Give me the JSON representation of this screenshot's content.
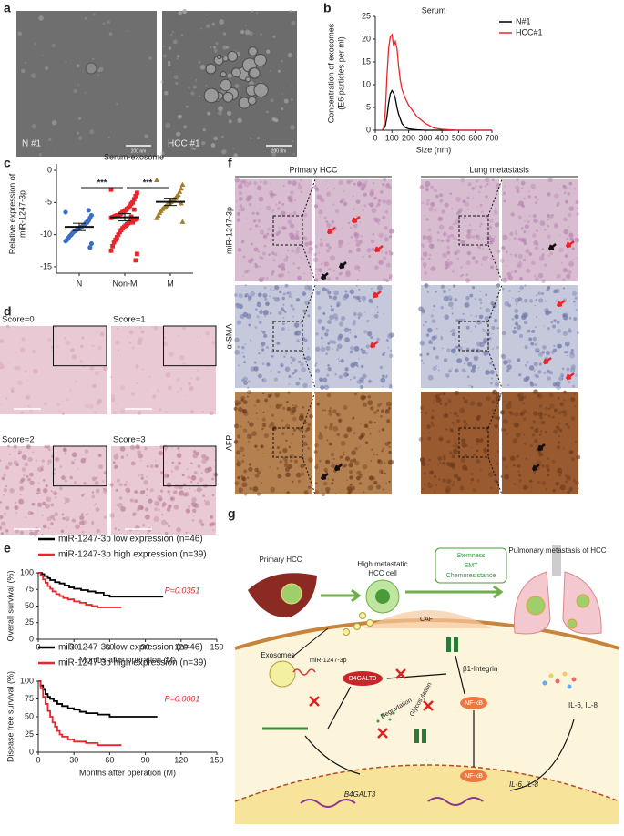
{
  "panel_labels": [
    "a",
    "b",
    "c",
    "d",
    "e",
    "f",
    "g"
  ],
  "panel_a": {
    "images": [
      {
        "label": "N #1",
        "scale": "200 nm"
      },
      {
        "label": "HCC #1",
        "scale": "200 nm"
      }
    ]
  },
  "panel_d": {
    "scores": [
      "Score=0",
      "Score=1",
      "Score=2",
      "Score=3"
    ]
  },
  "panel_f": {
    "columns": [
      "Primary HCC",
      "Lung metastasis"
    ],
    "rows": [
      "miR-1247-3p",
      "α-SMA",
      "AFP"
    ]
  },
  "panel_g": {
    "primary": "Primary HCC",
    "hcc_cell": [
      "High metastatic",
      "HCC cell"
    ],
    "effects": [
      "Stemness",
      "EMT",
      "Chemoresistance"
    ],
    "lung": "Pulmonary metastasis of HCC",
    "caf": "CAF",
    "exosomes": "Exosomes",
    "mirna": "miR-1247-3p",
    "b4galt3": "B4GALT3",
    "integrin": "β1-Integrin",
    "glycosylation": "Glycosylation",
    "nfkb": "NF-κB",
    "degradation": "Degradation",
    "il_secreted": "IL-6, IL-8",
    "b4galt3_gene": "B4GALT3",
    "nfkb_nucleus": "NF-κB",
    "il_genes": "IL-6, IL-8"
  },
  "chart_data": [
    {
      "type": "line",
      "title": "Serum",
      "xlabel": "Size (nm)",
      "ylabel": [
        "Concentration of exosomes",
        "(E6 particles per ml)"
      ],
      "x": [
        40,
        50,
        60,
        70,
        80,
        90,
        100,
        110,
        120,
        130,
        140,
        150,
        160,
        180,
        200,
        250,
        300,
        350,
        400,
        500,
        600,
        700
      ],
      "xlim": [
        0,
        700
      ],
      "xticks": [
        0,
        100,
        200,
        300,
        400,
        500,
        600,
        700
      ],
      "ylim": [
        0,
        25
      ],
      "yticks": [
        0,
        5,
        10,
        15,
        20,
        25
      ],
      "legend": "upper right",
      "series": [
        {
          "name": "N#1",
          "color": "#000000",
          "values": [
            0,
            0.2,
            1,
            3,
            6,
            8,
            8.7,
            8.2,
            7,
            5,
            3.5,
            2.5,
            1.5,
            0.6,
            0.3,
            0.1,
            0,
            0,
            0,
            0,
            0,
            0
          ]
        },
        {
          "name": "HCC#1",
          "color": "#e8262b",
          "values": [
            0,
            0.5,
            4,
            12,
            18,
            20.5,
            21,
            18.5,
            19.5,
            18,
            14,
            11,
            9,
            7,
            5.5,
            3,
            1.5,
            0.5,
            0.2,
            0,
            0,
            0
          ]
        }
      ]
    },
    {
      "type": "strip",
      "title": "Serum-exosome",
      "ylabel": [
        "Relative expression of",
        "miR-1247-3p"
      ],
      "categories": [
        "N",
        "Non-M",
        "M"
      ],
      "values": [
        [
          -6.5,
          -7,
          -7.4,
          -7.8,
          -8,
          -8.2,
          -8.5,
          -8.6,
          -8.8,
          -9,
          -9,
          -9.2,
          -9.4,
          -9.5,
          -9.7,
          -10,
          -10.2,
          -10.5,
          -10.8,
          -11,
          -11.4,
          -12,
          -6.2,
          -8.1
        ],
        [
          -3,
          -3.5,
          -4,
          -4.5,
          -5,
          -5.2,
          -5.5,
          -5.8,
          -6,
          -6.2,
          -6.4,
          -6.5,
          -6.7,
          -6.8,
          -7,
          -7,
          -7.1,
          -7.2,
          -7.3,
          -7.4,
          -7.5,
          -7.6,
          -7.7,
          -7.8,
          -7.9,
          -8,
          -8.2,
          -8.4,
          -8.6,
          -8.8,
          -9,
          -9.3,
          -9.6,
          -10,
          -10.4,
          -10.8,
          -11.2,
          -11.8,
          -12.5,
          -13,
          -14,
          -6.1,
          -8.1,
          -7.2
        ],
        [
          -1.5,
          -2.2,
          -2.8,
          -3.3,
          -3.8,
          -4,
          -4.3,
          -4.5,
          -4.7,
          -4.9,
          -5,
          -5.2,
          -5.4,
          -5.6,
          -5.8,
          -6,
          -6.3,
          -6.6,
          -7,
          -7.4,
          -8,
          -5.1
        ]
      ],
      "colors": [
        "#3a6ec4",
        "#e8262b",
        "#a0802e"
      ],
      "markers": [
        "circle",
        "square",
        "triangle"
      ],
      "means": [
        -8.8,
        -7.3,
        -4.9
      ],
      "ylim": [
        -16,
        1
      ],
      "yticks": [
        0,
        -5,
        -10,
        -15
      ],
      "significance": [
        "***",
        "***"
      ]
    },
    {
      "type": "km",
      "ylabel": "Overall survival (%)",
      "xlabel": "Months after operation (M)",
      "xlim": [
        0,
        150
      ],
      "xticks": [
        0,
        30,
        60,
        90,
        120,
        150
      ],
      "ylim": [
        0,
        100
      ],
      "yticks": [
        0,
        25,
        50,
        75,
        100
      ],
      "p_value": "P=0.0351",
      "legend": "top",
      "series": [
        {
          "name": "miR-1247-3p low expression (n=46)",
          "color": "#000000",
          "x": [
            0,
            3,
            5,
            8,
            10,
            14,
            18,
            22,
            26,
            30,
            36,
            42,
            48,
            55,
            60,
            105
          ],
          "values": [
            100,
            98,
            95,
            92,
            89,
            86,
            84,
            81,
            78,
            76,
            74,
            72,
            70,
            66,
            64,
            64
          ]
        },
        {
          "name": "miR-1247-3p high expression (n=39)",
          "color": "#e8262b",
          "x": [
            0,
            2,
            4,
            6,
            8,
            10,
            12,
            15,
            18,
            21,
            25,
            30,
            35,
            40,
            45,
            50,
            70
          ],
          "values": [
            100,
            96,
            90,
            85,
            80,
            76,
            72,
            68,
            65,
            62,
            60,
            57,
            55,
            52,
            50,
            48,
            48
          ]
        }
      ]
    },
    {
      "type": "km",
      "ylabel": "Disease free survival (%)",
      "xlabel": "Months after operation (M)",
      "xlim": [
        0,
        150
      ],
      "xticks": [
        0,
        30,
        60,
        90,
        120,
        150
      ],
      "ylim": [
        0,
        100
      ],
      "yticks": [
        0,
        25,
        50,
        75,
        100
      ],
      "p_value": "P=0.0001",
      "legend": "top",
      "series": [
        {
          "name": "miR-1247-3p low expression (n=46)",
          "color": "#000000",
          "x": [
            0,
            2,
            4,
            6,
            8,
            10,
            13,
            16,
            20,
            25,
            30,
            35,
            40,
            50,
            60,
            100
          ],
          "values": [
            100,
            94,
            88,
            82,
            78,
            75,
            72,
            68,
            65,
            62,
            60,
            57,
            55,
            53,
            50,
            50
          ]
        },
        {
          "name": "miR-1247-3p high expression (n=39)",
          "color": "#e8262b",
          "x": [
            0,
            2,
            4,
            6,
            8,
            10,
            12,
            14,
            16,
            18,
            20,
            25,
            30,
            40,
            50,
            70
          ],
          "values": [
            100,
            90,
            78,
            68,
            58,
            50,
            42,
            36,
            30,
            25,
            22,
            18,
            15,
            13,
            10,
            10
          ]
        }
      ]
    }
  ]
}
